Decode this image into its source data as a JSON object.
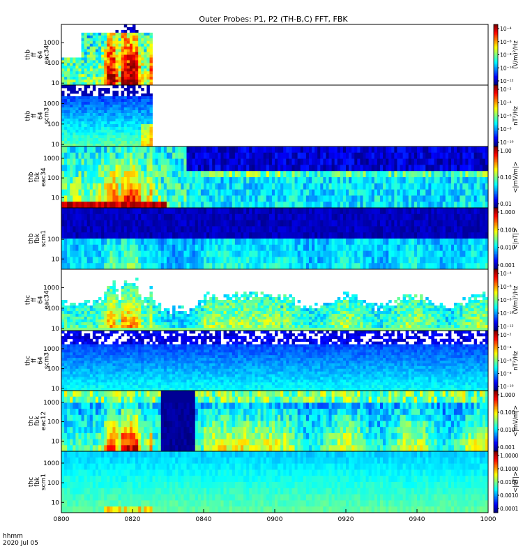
{
  "chart_data": {
    "type": "heatmap",
    "title": "Outer Probes: P1, P2 (TH-B,C) FFT, FBK",
    "time_label_line1": "hhmm",
    "time_label_line2": "2020 Jul 05",
    "x_ticks": [
      "0800",
      "0820",
      "0840",
      "0900",
      "0920",
      "0940",
      "1000"
    ],
    "x_range_minutes": [
      0,
      120
    ],
    "panels": [
      {
        "ylabel": [
          "thb",
          "ff",
          "64",
          "eac34"
        ],
        "yticks": [
          "1000",
          "100",
          "10"
        ],
        "y_range_hz": [
          8,
          8000
        ],
        "cbar_label": "(V/m)²/Hz",
        "cbar_ticks": [
          "10⁻⁴",
          "10⁻⁶",
          "10⁻⁸",
          "10⁻¹⁰",
          "10⁻¹²"
        ],
        "mode": "eac_ff",
        "data_end_min": 25.5,
        "data_start_min": 0
      },
      {
        "ylabel": [
          "thb",
          "ff",
          "64",
          "scm3"
        ],
        "yticks": [
          "1000",
          "100",
          "10"
        ],
        "y_range_hz": [
          8,
          8000
        ],
        "cbar_label": "nT²/Hz",
        "cbar_ticks": [
          "10⁻²",
          "10⁻⁴",
          "10⁻⁶",
          "10⁻⁸",
          "10⁻¹⁰"
        ],
        "mode": "scm_ff",
        "data_end_min": 25.5,
        "data_start_min": 0
      },
      {
        "ylabel": [
          "thb",
          "fbk",
          "eac34"
        ],
        "yticks": [
          "1000",
          "100",
          "10"
        ],
        "y_range_hz": [
          3,
          4000
        ],
        "cbar_label": "<|mV/m|>",
        "cbar_ticks": [
          "1.00",
          "0.10",
          "0.01"
        ],
        "mode": "fbk_e",
        "data_end_min": 120,
        "data_start_min": 0
      },
      {
        "ylabel": [
          "thb",
          "fbk",
          "scm1"
        ],
        "yticks": [
          "100",
          "10"
        ],
        "y_range_hz": [
          3,
          4000
        ],
        "cbar_label": "<|nT|>",
        "cbar_ticks": [
          "1.000",
          "0.100",
          "0.010",
          "0.001"
        ],
        "mode": "fbk_b1",
        "data_end_min": 120,
        "data_start_min": 0
      },
      {
        "ylabel": [
          "thc",
          "ff",
          "64",
          "eac34"
        ],
        "yticks": [
          "1000",
          "100",
          "10"
        ],
        "y_range_hz": [
          8,
          8000
        ],
        "cbar_label": "(V/m)²/Hz",
        "cbar_ticks": [
          "10⁻⁴",
          "10⁻⁶",
          "10⁻⁸",
          "10⁻¹⁰",
          "10⁻¹²"
        ],
        "mode": "eac_ff_c",
        "data_end_min": 120,
        "data_start_min": 0
      },
      {
        "ylabel": [
          "thc",
          "ff",
          "64",
          "scm3"
        ],
        "yticks": [
          "1000",
          "100",
          "10"
        ],
        "y_range_hz": [
          8,
          8000
        ],
        "cbar_label": "nT²/Hz",
        "cbar_ticks": [
          "10⁻²",
          "10⁻⁴",
          "10⁻⁶",
          "10⁻⁸",
          "10⁻¹⁰"
        ],
        "mode": "scm_ff_c",
        "data_end_min": 120,
        "data_start_min": 0
      },
      {
        "ylabel": [
          "thc",
          "fbk",
          "eac12"
        ],
        "yticks": [
          "1000",
          "100",
          "10"
        ],
        "y_range_hz": [
          3,
          4000
        ],
        "cbar_label": "<|mV/m|>",
        "cbar_ticks": [
          "1.000",
          "0.100",
          "0.010",
          "0.001"
        ],
        "mode": "fbk_e_c",
        "data_end_min": 120,
        "data_start_min": 0
      },
      {
        "ylabel": [
          "thc",
          "fbk",
          "scm1"
        ],
        "yticks": [
          "1000",
          "100",
          "10"
        ],
        "y_range_hz": [
          3,
          4000
        ],
        "cbar_label": "<|nT|>",
        "cbar_ticks": [
          "1.0000",
          "0.1000",
          "0.0100",
          "0.0010",
          "0.0001"
        ],
        "mode": "fbk_b_c",
        "data_end_min": 120,
        "data_start_min": 0
      }
    ]
  }
}
